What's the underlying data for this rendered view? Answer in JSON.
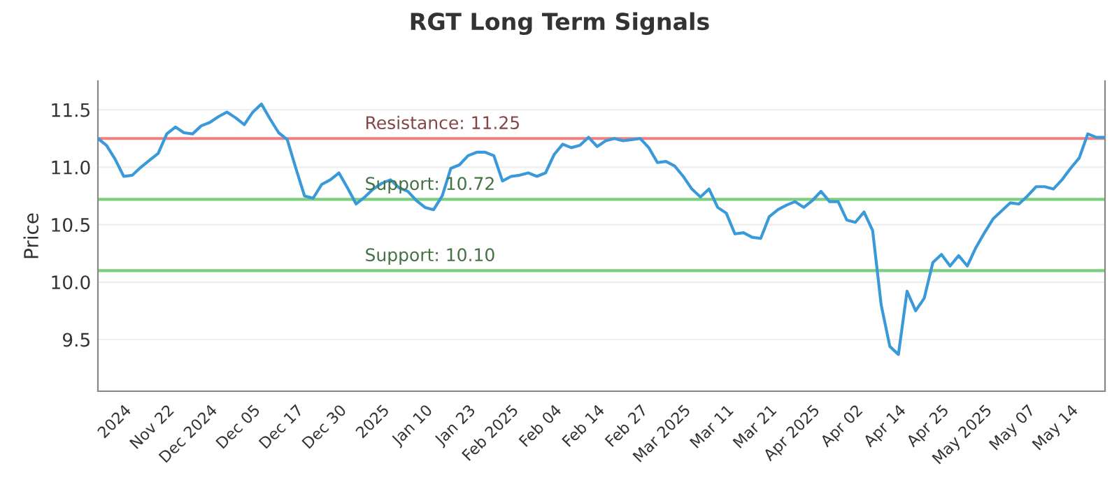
{
  "chart_data": {
    "type": "line",
    "title": "RGT Long Term Signals",
    "ylabel": "Price",
    "categories": [
      null,
      null,
      null,
      "2024",
      null,
      null,
      null,
      null,
      "Nov 22",
      null,
      null,
      null,
      null,
      "Dec 2024",
      null,
      null,
      null,
      null,
      "Dec 05",
      null,
      null,
      null,
      null,
      "Dec 17",
      null,
      null,
      null,
      null,
      "Dec 30",
      null,
      null,
      null,
      null,
      "2025",
      null,
      null,
      null,
      null,
      "Jan 10",
      null,
      null,
      null,
      null,
      "Jan 23",
      null,
      null,
      null,
      null,
      "Feb 2025",
      null,
      null,
      null,
      null,
      "Feb 04",
      null,
      null,
      null,
      null,
      "Feb 14",
      null,
      null,
      null,
      null,
      "Feb 27",
      null,
      null,
      null,
      null,
      "Mar 2025",
      null,
      null,
      null,
      null,
      "Mar 11",
      null,
      null,
      null,
      null,
      "Mar 21",
      null,
      null,
      null,
      null,
      "Apr 2025",
      null,
      null,
      null,
      null,
      "Apr 02",
      null,
      null,
      null,
      null,
      "Apr 14",
      null,
      null,
      null,
      null,
      "Apr 25",
      null,
      null,
      null,
      null,
      "May 2025",
      null,
      null,
      null,
      null,
      "May 07",
      null,
      null,
      null,
      null,
      "May 14",
      null,
      null,
      null,
      null
    ],
    "series": [
      {
        "color": "#3a9ad9",
        "values": [
          11.25,
          11.19,
          11.07,
          10.92,
          10.93,
          11.0,
          11.06,
          11.12,
          11.29,
          11.35,
          11.3,
          11.29,
          11.36,
          11.39,
          11.44,
          11.48,
          11.43,
          11.37,
          11.48,
          11.55,
          11.42,
          11.3,
          11.24,
          10.99,
          10.75,
          10.73,
          10.85,
          10.89,
          10.95,
          10.82,
          10.68,
          10.74,
          10.81,
          10.86,
          10.89,
          10.82,
          10.79,
          10.71,
          10.65,
          10.63,
          10.75,
          10.99,
          11.02,
          11.1,
          11.13,
          11.13,
          11.1,
          10.88,
          10.92,
          10.93,
          10.95,
          10.92,
          10.95,
          11.11,
          11.2,
          11.17,
          11.19,
          11.26,
          11.18,
          11.23,
          11.25,
          11.23,
          11.24,
          11.25,
          11.17,
          11.04,
          11.05,
          11.01,
          10.92,
          10.81,
          10.74,
          10.81,
          10.65,
          10.6,
          10.42,
          10.43,
          10.39,
          10.38,
          10.57,
          10.63,
          10.67,
          10.7,
          10.65,
          10.71,
          10.79,
          10.7,
          10.7,
          10.54,
          10.52,
          10.61,
          10.45,
          9.8,
          9.44,
          9.37,
          9.92,
          9.75,
          9.86,
          10.17,
          10.24,
          10.14,
          10.23,
          10.14,
          10.3,
          10.43,
          10.55,
          10.62,
          10.69,
          10.68,
          10.75,
          10.83,
          10.83,
          10.81,
          10.89,
          10.99,
          11.08,
          11.29,
          11.26,
          11.26
        ]
      }
    ],
    "ylim": [
      9.05,
      11.75
    ],
    "yticks": [
      9.5,
      {
        "value": 10,
        "label": "10.0"
      },
      10.5,
      {
        "value": 11,
        "label": "11.0"
      },
      11.5
    ],
    "grid": "y",
    "ref_lines": [
      {
        "axis": "y",
        "value": 11.25,
        "label": "Resistance: 11.25",
        "color": "#f08080"
      },
      {
        "axis": "y",
        "value": 10.72,
        "label": "Support: 10.72",
        "color": "#7ccf7c"
      },
      {
        "axis": "y",
        "value": 10.1,
        "label": "Support: 10.10",
        "color": "#7ccf7c"
      }
    ]
  }
}
